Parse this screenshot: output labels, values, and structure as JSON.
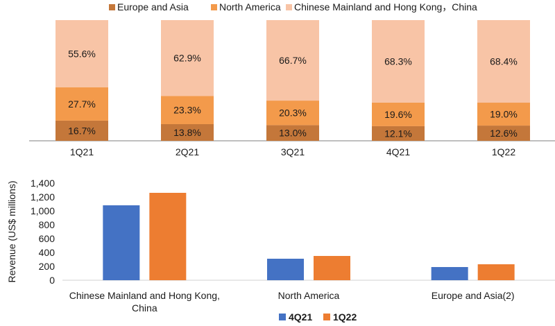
{
  "chart_data": [
    {
      "type": "bar",
      "stacked": true,
      "title": "",
      "xlabel": "",
      "ylabel": "",
      "categories": [
        "1Q21",
        "2Q21",
        "3Q21",
        "4Q21",
        "1Q22"
      ],
      "ylim": [
        0,
        100
      ],
      "legend_position": "top",
      "series": [
        {
          "name": "Europe and Asia",
          "color": "#c4773a",
          "values": [
            16.7,
            13.8,
            13.0,
            12.1,
            12.6
          ],
          "labels": [
            "16.7%",
            "13.8%",
            "13.0%",
            "12.1%",
            "12.6%"
          ]
        },
        {
          "name": "North America",
          "color": "#f39a4b",
          "values": [
            27.7,
            23.3,
            20.3,
            19.6,
            19.0
          ],
          "labels": [
            "27.7%",
            "23.3%",
            "20.3%",
            "19.6%",
            "19.0%"
          ]
        },
        {
          "name": "Chinese Mainland and Hong Kong，China",
          "color": "#f8c4a6",
          "values": [
            55.6,
            62.9,
            66.7,
            68.3,
            68.4
          ],
          "labels": [
            "55.6%",
            "62.9%",
            "66.7%",
            "68.3%",
            "68.4%"
          ]
        }
      ]
    },
    {
      "type": "bar",
      "stacked": false,
      "title": "",
      "xlabel": "",
      "ylabel": "Revenue (US$  millions)",
      "categories": [
        "Chinese Mainland and Hong Kong, China",
        "North America",
        "Europe and Asia(2)"
      ],
      "category_lines": [
        [
          "Chinese Mainland and Hong Kong,",
          "China"
        ],
        [
          "North America"
        ],
        [
          "Europe and Asia(2)"
        ]
      ],
      "ylim": [
        0,
        1400
      ],
      "yticks": [
        0,
        200,
        400,
        600,
        800,
        1000,
        1200,
        1400
      ],
      "ytick_labels": [
        "0",
        "200",
        "400",
        "600",
        "800",
        "1,000",
        "1,200",
        "1,400"
      ],
      "grid": false,
      "legend_position": "bottom",
      "series": [
        {
          "name": "4Q21",
          "color": "#4472c4",
          "values": [
            1080,
            310,
            190
          ]
        },
        {
          "name": "1Q22",
          "color": "#ed7d31",
          "values": [
            1260,
            350,
            230
          ]
        }
      ]
    }
  ]
}
